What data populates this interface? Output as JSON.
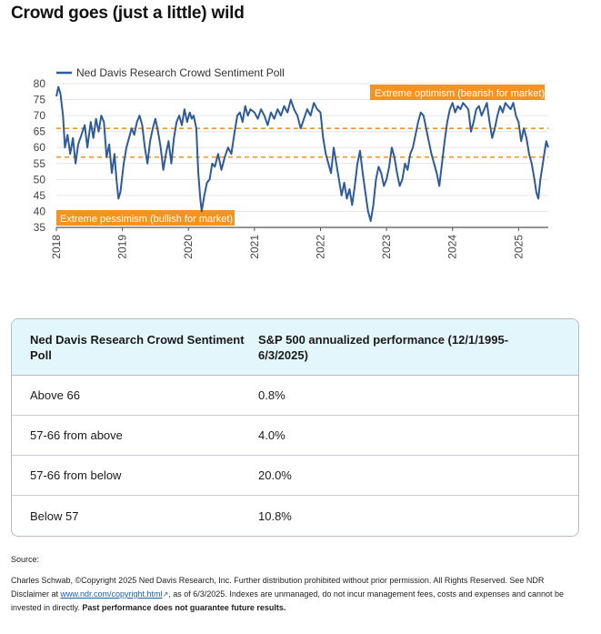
{
  "page": {
    "title": "Crowd goes (just a little) wild"
  },
  "chart_data": {
    "type": "line",
    "series": [
      {
        "name": "Ned Davis Research Crowd Sentiment Poll",
        "color": "#2e5b9a",
        "points": [
          [
            2018.0,
            76
          ],
          [
            2018.03,
            79
          ],
          [
            2018.06,
            77
          ],
          [
            2018.1,
            70
          ],
          [
            2018.13,
            60
          ],
          [
            2018.17,
            64
          ],
          [
            2018.21,
            58
          ],
          [
            2018.25,
            63
          ],
          [
            2018.29,
            55
          ],
          [
            2018.33,
            61
          ],
          [
            2018.38,
            64
          ],
          [
            2018.43,
            67
          ],
          [
            2018.47,
            60
          ],
          [
            2018.52,
            68
          ],
          [
            2018.56,
            63
          ],
          [
            2018.6,
            69
          ],
          [
            2018.64,
            65
          ],
          [
            2018.68,
            70
          ],
          [
            2018.72,
            68
          ],
          [
            2018.76,
            57
          ],
          [
            2018.8,
            61
          ],
          [
            2018.84,
            52
          ],
          [
            2018.88,
            58
          ],
          [
            2018.91,
            50
          ],
          [
            2018.94,
            44
          ],
          [
            2018.97,
            46
          ],
          [
            2019.02,
            55
          ],
          [
            2019.06,
            60
          ],
          [
            2019.1,
            63
          ],
          [
            2019.14,
            66
          ],
          [
            2019.18,
            64
          ],
          [
            2019.22,
            68
          ],
          [
            2019.26,
            70
          ],
          [
            2019.3,
            67
          ],
          [
            2019.34,
            60
          ],
          [
            2019.38,
            55
          ],
          [
            2019.42,
            62
          ],
          [
            2019.46,
            66
          ],
          [
            2019.5,
            69
          ],
          [
            2019.54,
            65
          ],
          [
            2019.58,
            60
          ],
          [
            2019.62,
            53
          ],
          [
            2019.66,
            58
          ],
          [
            2019.7,
            62
          ],
          [
            2019.74,
            55
          ],
          [
            2019.78,
            63
          ],
          [
            2019.82,
            68
          ],
          [
            2019.86,
            70
          ],
          [
            2019.9,
            67
          ],
          [
            2019.94,
            72
          ],
          [
            2019.98,
            68
          ],
          [
            2020.02,
            71
          ],
          [
            2020.05,
            69
          ],
          [
            2020.08,
            70
          ],
          [
            2020.12,
            66
          ],
          [
            2020.15,
            52
          ],
          [
            2020.18,
            44
          ],
          [
            2020.2,
            40
          ],
          [
            2020.24,
            45
          ],
          [
            2020.28,
            49
          ],
          [
            2020.32,
            50
          ],
          [
            2020.36,
            55
          ],
          [
            2020.4,
            54
          ],
          [
            2020.45,
            58
          ],
          [
            2020.5,
            53
          ],
          [
            2020.55,
            57
          ],
          [
            2020.6,
            60
          ],
          [
            2020.65,
            58
          ],
          [
            2020.7,
            65
          ],
          [
            2020.74,
            70
          ],
          [
            2020.78,
            71
          ],
          [
            2020.82,
            68
          ],
          [
            2020.86,
            73
          ],
          [
            2020.9,
            70
          ],
          [
            2020.94,
            72
          ],
          [
            2021.0,
            71
          ],
          [
            2021.05,
            69
          ],
          [
            2021.1,
            72
          ],
          [
            2021.15,
            70
          ],
          [
            2021.2,
            67
          ],
          [
            2021.25,
            71
          ],
          [
            2021.3,
            69
          ],
          [
            2021.35,
            72
          ],
          [
            2021.4,
            70
          ],
          [
            2021.45,
            73
          ],
          [
            2021.5,
            71
          ],
          [
            2021.55,
            75
          ],
          [
            2021.6,
            72
          ],
          [
            2021.65,
            70
          ],
          [
            2021.7,
            66
          ],
          [
            2021.75,
            69
          ],
          [
            2021.8,
            72
          ],
          [
            2021.85,
            70
          ],
          [
            2021.9,
            74
          ],
          [
            2021.95,
            72
          ],
          [
            2022.0,
            71
          ],
          [
            2022.04,
            63
          ],
          [
            2022.08,
            58
          ],
          [
            2022.12,
            55
          ],
          [
            2022.16,
            52
          ],
          [
            2022.2,
            60
          ],
          [
            2022.24,
            55
          ],
          [
            2022.28,
            50
          ],
          [
            2022.32,
            45
          ],
          [
            2022.36,
            49
          ],
          [
            2022.4,
            44
          ],
          [
            2022.44,
            47
          ],
          [
            2022.48,
            42
          ],
          [
            2022.52,
            48
          ],
          [
            2022.56,
            55
          ],
          [
            2022.6,
            59
          ],
          [
            2022.64,
            52
          ],
          [
            2022.68,
            46
          ],
          [
            2022.72,
            40
          ],
          [
            2022.76,
            37
          ],
          [
            2022.8,
            42
          ],
          [
            2022.84,
            50
          ],
          [
            2022.88,
            54
          ],
          [
            2022.92,
            52
          ],
          [
            2022.96,
            48
          ],
          [
            2023.0,
            50
          ],
          [
            2023.04,
            54
          ],
          [
            2023.08,
            60
          ],
          [
            2023.12,
            57
          ],
          [
            2023.16,
            52
          ],
          [
            2023.2,
            48
          ],
          [
            2023.24,
            50
          ],
          [
            2023.28,
            55
          ],
          [
            2023.32,
            53
          ],
          [
            2023.36,
            58
          ],
          [
            2023.4,
            60
          ],
          [
            2023.44,
            64
          ],
          [
            2023.48,
            68
          ],
          [
            2023.52,
            71
          ],
          [
            2023.56,
            70
          ],
          [
            2023.6,
            66
          ],
          [
            2023.64,
            62
          ],
          [
            2023.68,
            58
          ],
          [
            2023.72,
            55
          ],
          [
            2023.76,
            52
          ],
          [
            2023.8,
            48
          ],
          [
            2023.84,
            55
          ],
          [
            2023.88,
            62
          ],
          [
            2023.92,
            68
          ],
          [
            2023.96,
            72
          ],
          [
            2024.0,
            74
          ],
          [
            2024.04,
            71
          ],
          [
            2024.08,
            73
          ],
          [
            2024.12,
            72
          ],
          [
            2024.16,
            74
          ],
          [
            2024.2,
            73
          ],
          [
            2024.24,
            72
          ],
          [
            2024.28,
            65
          ],
          [
            2024.32,
            68
          ],
          [
            2024.36,
            72
          ],
          [
            2024.4,
            73
          ],
          [
            2024.44,
            70
          ],
          [
            2024.48,
            72
          ],
          [
            2024.52,
            74
          ],
          [
            2024.56,
            68
          ],
          [
            2024.6,
            63
          ],
          [
            2024.64,
            66
          ],
          [
            2024.68,
            70
          ],
          [
            2024.72,
            73
          ],
          [
            2024.76,
            71
          ],
          [
            2024.8,
            74
          ],
          [
            2024.84,
            73
          ],
          [
            2024.88,
            72
          ],
          [
            2024.92,
            74
          ],
          [
            2024.96,
            70
          ],
          [
            2025.0,
            68
          ],
          [
            2025.04,
            62
          ],
          [
            2025.08,
            66
          ],
          [
            2025.12,
            63
          ],
          [
            2025.16,
            58
          ],
          [
            2025.2,
            55
          ],
          [
            2025.24,
            50
          ],
          [
            2025.27,
            46
          ],
          [
            2025.3,
            44
          ],
          [
            2025.33,
            50
          ],
          [
            2025.36,
            54
          ],
          [
            2025.39,
            58
          ],
          [
            2025.42,
            62
          ],
          [
            2025.45,
            60
          ]
        ]
      }
    ],
    "thresholds": [
      {
        "value": 66,
        "label": "Extreme optimism (bearish for market)",
        "color": "#f29322"
      },
      {
        "value": 57,
        "label": "Extreme pessimism (bullish for market)",
        "color": "#f29322"
      }
    ],
    "x_ticks": [
      "2018",
      "2019",
      "2020",
      "2021",
      "2022",
      "2023",
      "2024",
      "2025"
    ],
    "x_tick_values": [
      2018,
      2019,
      2020,
      2021,
      2022,
      2023,
      2024,
      2025
    ],
    "xlim": [
      2018.0,
      2025.45
    ],
    "y_ticks": [
      "35",
      "40",
      "45",
      "50",
      "55",
      "60",
      "65",
      "70",
      "75",
      "80"
    ],
    "ylim": [
      35,
      80
    ],
    "grid": true,
    "legend_position": "top-left"
  },
  "table": {
    "headers": [
      "Ned Davis Research Crowd Sentiment Poll",
      "S&P 500 annualized performance (12/1/1995-6/3/2025)"
    ],
    "rows": [
      {
        "label": "Above 66",
        "value": "0.8%"
      },
      {
        "label": "57-66 from above",
        "value": "4.0%"
      },
      {
        "label": "57-66 from below",
        "value": "20.0%"
      },
      {
        "label": "Below 57",
        "value": "10.8%"
      }
    ]
  },
  "source": {
    "label": "Source:",
    "text_before_link": "Charles Schwab, ©Copyright 2025 Ned Davis Research, Inc. Further distribution prohibited without prior permission. All Rights Reserved. See NDR Disclaimer at ",
    "link": "www.ndr.com/copyright.html",
    "text_after_link": ", as of 6/3/2025. Indexes are unmanaged, do not incur management fees, costs and expenses and cannot be invested in directly. ",
    "bold_text": "Past performance does not guarantee future results."
  }
}
